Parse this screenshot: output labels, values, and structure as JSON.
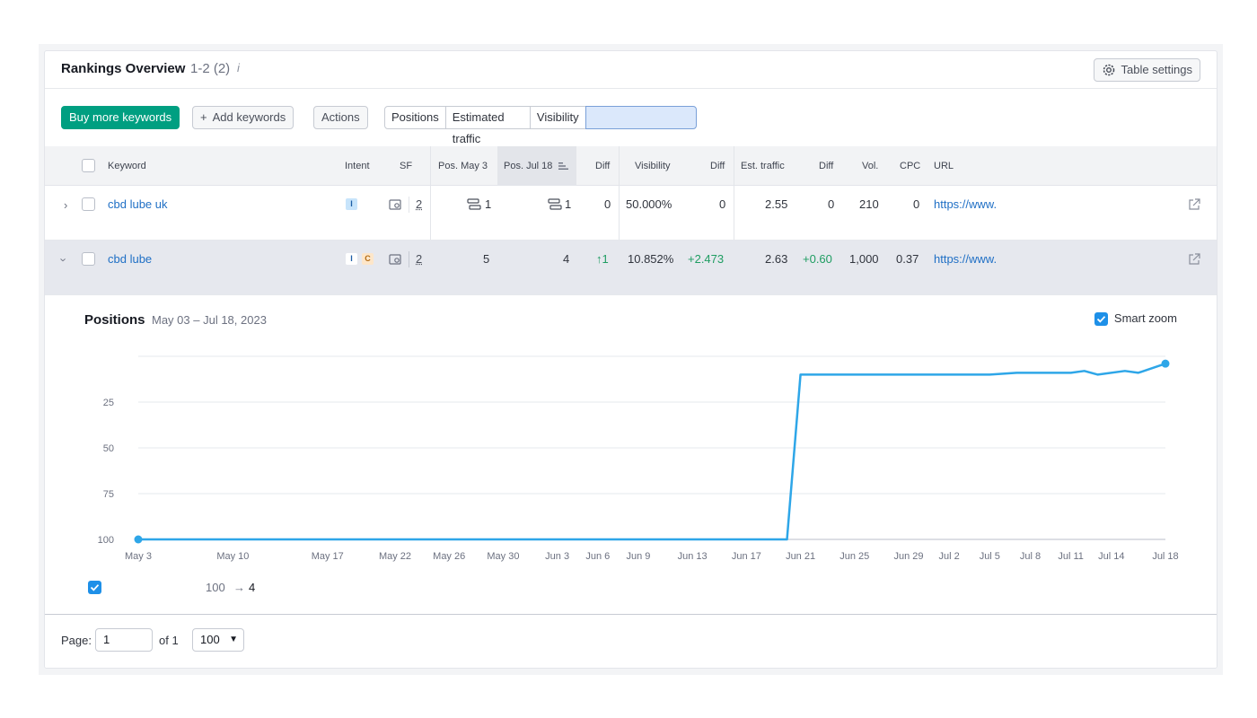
{
  "header": {
    "title": "Rankings Overview",
    "range": "1-2 (2)",
    "table_settings_label": "Table settings"
  },
  "toolbar": {
    "buy_label": "Buy more keywords",
    "add_label": "Add keywords",
    "actions_label": "Actions",
    "tabs": [
      "Positions",
      "Estimated traffic",
      "Visibility"
    ]
  },
  "columns": {
    "keyword": "Keyword",
    "intent": "Intent",
    "sf": "SF",
    "pos_start": "Pos. May 3",
    "pos_end": "Pos. Jul 18",
    "diff": "Diff",
    "visibility": "Visibility",
    "vis_diff": "Diff",
    "est_traffic": "Est. traffic",
    "traffic_diff": "Diff",
    "volume": "Vol.",
    "cpc": "CPC",
    "url": "URL"
  },
  "rows": [
    {
      "keyword": "cbd lube uk",
      "intents": [
        "I"
      ],
      "sf": "2",
      "pos_start": "1",
      "pos_end": "1",
      "diff": "0",
      "visibility": "50.000%",
      "vis_diff": "0",
      "est_traffic": "2.55",
      "traffic_diff": "0",
      "volume": "210",
      "cpc": "0",
      "url": "https://www."
    },
    {
      "keyword": "cbd lube",
      "intents": [
        "I",
        "C"
      ],
      "sf": "2",
      "pos_start": "5",
      "pos_end": "4",
      "diff": "↑1",
      "visibility": "10.852%",
      "vis_diff": "+2.473",
      "est_traffic": "2.63",
      "traffic_diff": "+0.60",
      "volume": "1,000",
      "cpc": "0.37",
      "url": "https://www."
    }
  ],
  "chart_panel": {
    "title": "Positions",
    "range": "May 03 – Jul 18, 2023",
    "smart_zoom_label": "Smart zoom",
    "legend_from": "100",
    "legend_to": "4"
  },
  "chart_data": {
    "type": "line",
    "title": "Positions",
    "y_inverted": true,
    "ylim": [
      0,
      100
    ],
    "yticks": [
      "25",
      "50",
      "75",
      "100"
    ],
    "xticks": [
      "May 3",
      "May 10",
      "May 17",
      "May 22",
      "May 26",
      "May 30",
      "Jun 3",
      "Jun 6",
      "Jun 9",
      "Jun 13",
      "Jun 17",
      "Jun 21",
      "Jun 25",
      "Jun 29",
      "Jul 2",
      "Jul 5",
      "Jul 8",
      "Jul 11",
      "Jul 14",
      "Jul 18"
    ],
    "series": [
      {
        "color": "#2ea6e8",
        "points": [
          {
            "x": "May 3",
            "y": 100
          },
          {
            "x": "Jun 20",
            "y": 100
          },
          {
            "x": "Jun 21",
            "y": 10
          },
          {
            "x": "Jul 5",
            "y": 10
          },
          {
            "x": "Jul 7",
            "y": 9
          },
          {
            "x": "Jul 11",
            "y": 9
          },
          {
            "x": "Jul 12",
            "y": 8
          },
          {
            "x": "Jul 13",
            "y": 10
          },
          {
            "x": "Jul 15",
            "y": 8
          },
          {
            "x": "Jul 16",
            "y": 9
          },
          {
            "x": "Jul 18",
            "y": 4
          }
        ]
      }
    ],
    "grid": true
  },
  "footer": {
    "page_label": "Page:",
    "page_value": "1",
    "of_label": "of 1",
    "page_size": "100"
  }
}
